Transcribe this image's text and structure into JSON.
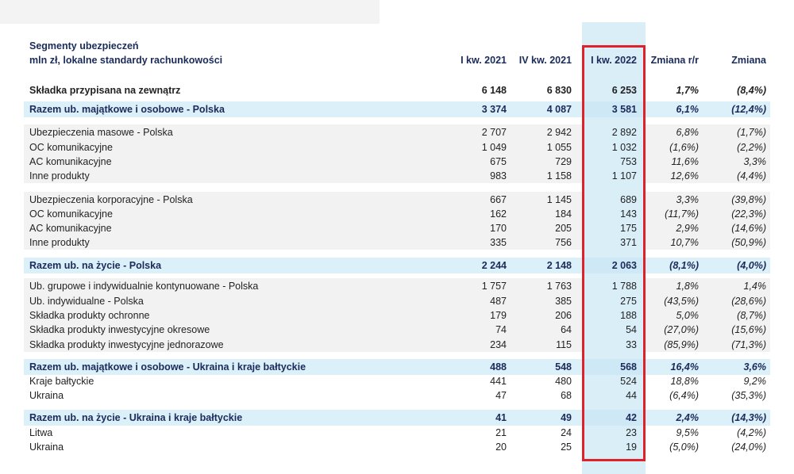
{
  "header": {
    "title": "Segmenty ubezpieczeń",
    "subtitle": "mln zł, lokalne standardy rachunkowości",
    "columns": [
      "I kw. 2021",
      "IV kw. 2021",
      "I kw. 2022",
      "Zmiana r/r",
      "Zmiana"
    ]
  },
  "table": {
    "rows": [
      [
        "Składka przypisana na zewnątrz",
        "6 148",
        "6 830",
        "6 253",
        "1,7%",
        "(8,4%)"
      ],
      [
        "Razem ub. majątkowe i osobowe - Polska",
        "3 374",
        "4 087",
        "3 581",
        "6,1%",
        "(12,4%)"
      ],
      [
        "Ubezpieczenia masowe - Polska",
        "2 707",
        "2 942",
        "2 892",
        "6,8%",
        "(1,7%)"
      ],
      [
        "OC komunikacyjne",
        "1 049",
        "1 055",
        "1 032",
        "(1,6%)",
        "(2,2%)"
      ],
      [
        "AC komunikacyjne",
        "675",
        "729",
        "753",
        "11,6%",
        "3,3%"
      ],
      [
        "Inne produkty",
        "983",
        "1 158",
        "1 107",
        "12,6%",
        "(4,4%)"
      ],
      [
        "Ubezpieczenia korporacyjne - Polska",
        "667",
        "1 145",
        "689",
        "3,3%",
        "(39,8%)"
      ],
      [
        "OC komunikacyjne",
        "162",
        "184",
        "143",
        "(11,7%)",
        "(22,3%)"
      ],
      [
        "AC komunikacyjne",
        "170",
        "205",
        "175",
        "2,9%",
        "(14,6%)"
      ],
      [
        "Inne produkty",
        "335",
        "756",
        "371",
        "10,7%",
        "(50,9%)"
      ],
      [
        "Razem ub. na życie - Polska",
        "2 244",
        "2 148",
        "2 063",
        "(8,1%)",
        "(4,0%)"
      ],
      [
        "Ub. grupowe i indywidualnie kontynuowane - Polska",
        "1 757",
        "1 763",
        "1 788",
        "1,8%",
        "1,4%"
      ],
      [
        "Ub. indywidualne - Polska",
        "487",
        "385",
        "275",
        "(43,5%)",
        "(28,6%)"
      ],
      [
        "Składka produkty ochronne",
        "179",
        "206",
        "188",
        "5,0%",
        "(8,7%)"
      ],
      [
        "Składka produkty inwestycyjne okresowe",
        "74",
        "64",
        "54",
        "(27,0%)",
        "(15,6%)"
      ],
      [
        "Składka produkty inwestycyjne jednorazowe",
        "234",
        "115",
        "33",
        "(85,9%)",
        "(71,3%)"
      ],
      [
        "Razem ub. majątkowe i osobowe - Ukraina i kraje bałtyckie",
        "488",
        "548",
        "568",
        "16,4%",
        "3,6%"
      ],
      [
        "Kraje bałtyckie",
        "441",
        "480",
        "524",
        "18,8%",
        "9,2%"
      ],
      [
        "Ukraina",
        "47",
        "68",
        "44",
        "(6,4%)",
        "(35,3%)"
      ],
      [
        "Razem ub. na życie - Ukraina i kraje bałtyckie",
        "41",
        "49",
        "42",
        "2,4%",
        "(14,3%)"
      ],
      [
        "Litwa",
        "21",
        "24",
        "23",
        "9,5%",
        "(4,2%)"
      ],
      [
        "Ukraina",
        "20",
        "25",
        "19",
        "(5,0%)",
        "(24,0%)"
      ]
    ]
  }
}
